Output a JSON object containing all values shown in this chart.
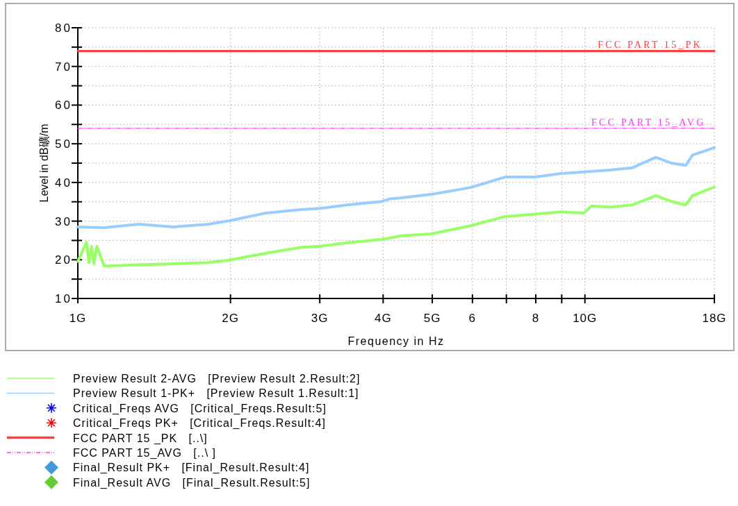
{
  "chart_data": {
    "type": "line",
    "xlabel": "Frequency in Hz",
    "ylabel": "Level in dB礦/m",
    "log": "x",
    "xlim": [
      1,
      18
    ],
    "xticks": [
      {
        "value": 1,
        "label": "1G"
      },
      {
        "value": 2,
        "label": "2G"
      },
      {
        "value": 3,
        "label": "3G"
      },
      {
        "value": 4,
        "label": "4G"
      },
      {
        "value": 5,
        "label": "5G"
      },
      6,
      {
        "value": 7,
        "label": null
      },
      8,
      {
        "value": 9,
        "label": null
      },
      {
        "value": 10,
        "label": "10G"
      },
      {
        "value": 18,
        "label": "18G"
      }
    ],
    "ylim": [
      10,
      80
    ],
    "yticks": [
      10,
      {
        "value": 15,
        "label": null
      },
      20,
      {
        "value": 25,
        "label": null
      },
      30,
      {
        "value": 35,
        "label": null
      },
      40,
      {
        "value": 45,
        "label": null
      },
      50,
      {
        "value": 55,
        "label": null
      },
      60,
      {
        "value": 65,
        "label": null
      },
      70,
      {
        "value": 75,
        "label": null
      },
      80
    ],
    "grid": true,
    "legend": "bottom",
    "series": [
      {
        "name": "Preview Result 2-AVG   [Preview Result 2.Result:2]",
        "color": "#99ff66",
        "x": [
          1.0,
          1.04,
          1.052,
          1.064,
          1.076,
          1.09,
          1.127,
          1.32,
          1.546,
          1.81,
          1.99,
          2.35,
          2.75,
          3.0,
          3.4,
          3.98,
          4.11,
          4.34,
          4.97,
          5.95,
          6.96,
          7.98,
          8.96,
          9.95,
          10.3,
          11.2,
          12.4,
          13.8,
          14.8,
          15.8,
          16.3,
          18.0
        ],
        "values": [
          19.6,
          24.5,
          19.2,
          23.5,
          19.0,
          23.5,
          18.4,
          18.7,
          19.0,
          19.3,
          19.9,
          21.7,
          23.2,
          23.5,
          24.4,
          25.3,
          25.6,
          26.2,
          26.7,
          28.8,
          31.2,
          31.8,
          32.4,
          32.1,
          33.9,
          33.6,
          34.2,
          36.6,
          35.1,
          34.2,
          36.6,
          38.8
        ]
      },
      {
        "name": "Preview Result 1-PK+   [Preview Result 1.Result:1]",
        "color": "#99ccff",
        "x": [
          1.0,
          1.127,
          1.32,
          1.546,
          1.81,
          1.99,
          2.35,
          2.75,
          3.0,
          3.4,
          3.98,
          4.11,
          4.34,
          4.97,
          5.95,
          6.96,
          7.98,
          8.96,
          9.95,
          11.2,
          12.4,
          13.8,
          14.8,
          15.8,
          16.3,
          18.0
        ],
        "values": [
          28.5,
          28.3,
          29.2,
          28.5,
          29.2,
          30.1,
          32.1,
          33.0,
          33.3,
          34.2,
          35.1,
          35.7,
          36.0,
          36.9,
          38.7,
          41.4,
          41.4,
          42.3,
          42.7,
          43.2,
          43.8,
          46.5,
          45.0,
          44.4,
          47.1,
          49.0
        ]
      },
      {
        "name": "Critical_Freqs AVG   [Critical_Freqs.Result:5]",
        "type": "scatter",
        "marker": "star",
        "color": "#0000ff"
      },
      {
        "name": "Critical_Freqs PK+   [Critical_Freqs.Result:4]",
        "type": "scatter",
        "marker": "star",
        "color": "#ff0000"
      },
      {
        "name": "FCC PART 15 _PK   [..\\]",
        "color": "#ff4040",
        "line_style": "solid",
        "x": [
          1,
          18
        ],
        "values": [
          74,
          74
        ]
      },
      {
        "name": "FCC PART 15_AVG   [..\\ ]",
        "color": "#ff33ff",
        "line_style": "dashed",
        "x": [
          1,
          18
        ],
        "values": [
          54,
          54
        ]
      },
      {
        "name": "Final_Result PK+   [Final_Result.Result:4]",
        "type": "scatter",
        "marker": "diamond",
        "color": "#4499dd"
      },
      {
        "name": "Final_Result AVG   [Final_Result.Result:5]",
        "type": "scatter",
        "marker": "diamond",
        "color": "#66cc33"
      }
    ],
    "annotations": [
      {
        "text": "FCC PART 15_PK",
        "x": 10.6,
        "y": 74
      },
      {
        "text": "FCC PART 15_AVG",
        "x": 10.3,
        "y": 54
      }
    ]
  }
}
